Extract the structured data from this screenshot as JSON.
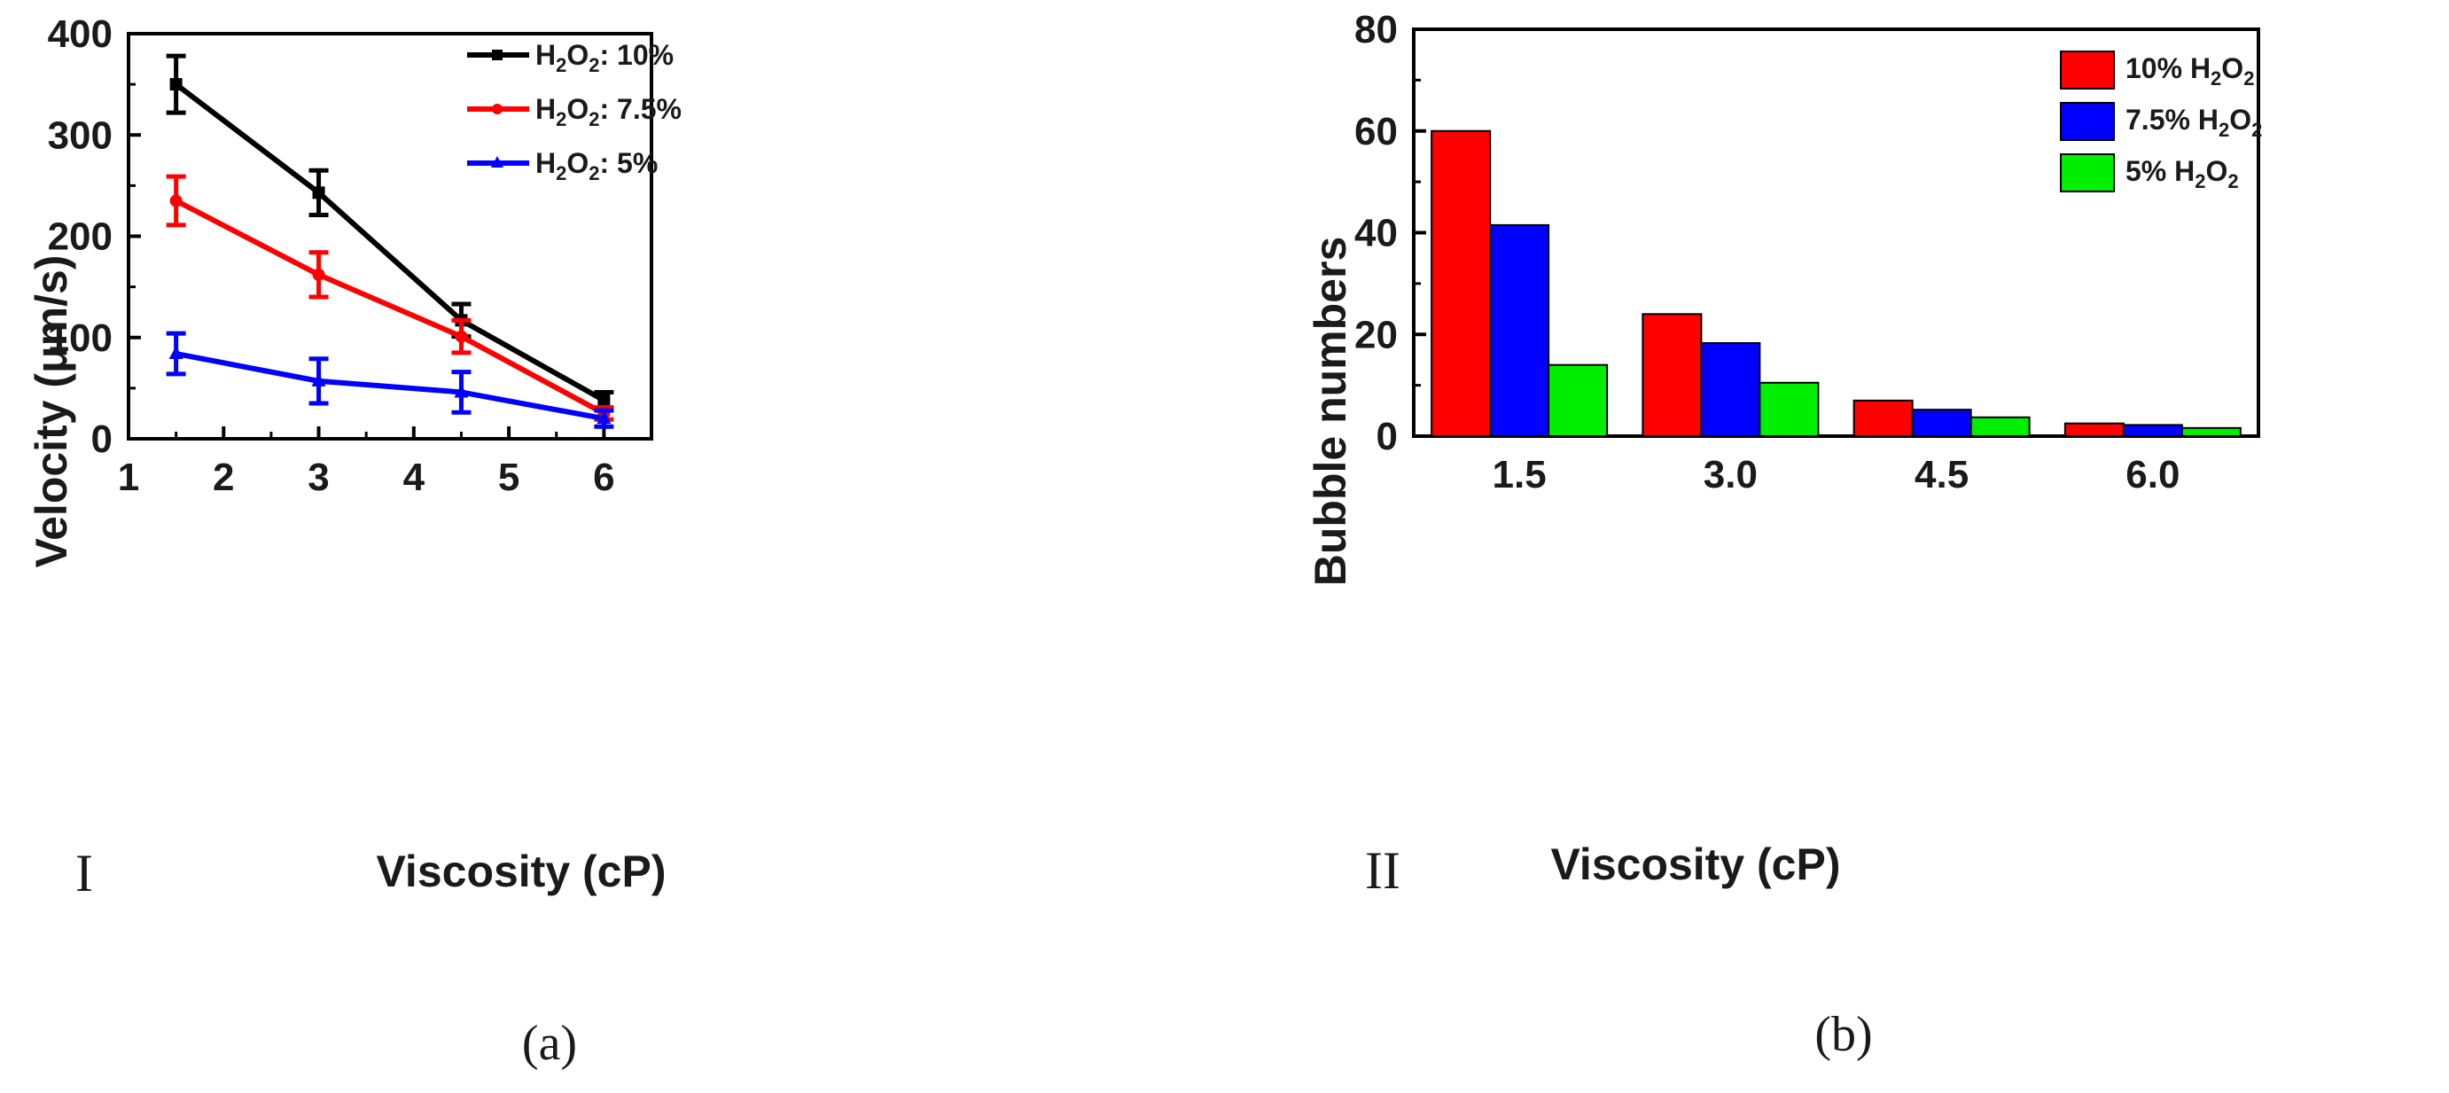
{
  "chart_data": [
    {
      "type": "line",
      "panel_numeral": "I",
      "caption": "(a)",
      "xlabel": "Viscosity (cP)",
      "ylabel": "Velocity (μm/s)",
      "xlim": [
        1,
        6.5
      ],
      "ylim": [
        0,
        400
      ],
      "x_ticks": [
        1,
        2,
        3,
        4,
        5,
        6
      ],
      "y_ticks": [
        0,
        100,
        200,
        300,
        400
      ],
      "legend_position": "top-right",
      "series": [
        {
          "name": "H2O2: 10%",
          "legend_prefix": "H",
          "legend_sub1": "2",
          "legend_mid": "O",
          "legend_sub2": "2",
          "legend_suffix": ": 10%",
          "color": "#000000",
          "marker": "square",
          "x": [
            1.5,
            3,
            4.5,
            6
          ],
          "y": [
            350,
            243,
            117,
            38
          ],
          "err": [
            28,
            22,
            16,
            8
          ]
        },
        {
          "name": "H2O2: 7.5%",
          "legend_prefix": "H",
          "legend_sub1": "2",
          "legend_mid": "O",
          "legend_sub2": "2",
          "legend_suffix": ": 7.5%",
          "color": "#ff0000",
          "marker": "circle",
          "x": [
            1.5,
            3,
            4.5,
            6
          ],
          "y": [
            235,
            162,
            101,
            25
          ],
          "err": [
            24,
            22,
            16,
            6
          ]
        },
        {
          "name": "H2O2: 5%",
          "legend_prefix": "H",
          "legend_sub1": "2",
          "legend_mid": "O",
          "legend_sub2": "2",
          "legend_suffix": ": 5%",
          "color": "#0000ff",
          "marker": "triangle",
          "x": [
            1.5,
            3,
            4.5,
            6
          ],
          "y": [
            84,
            57,
            46,
            20
          ],
          "err": [
            20,
            22,
            20,
            8
          ]
        }
      ]
    },
    {
      "type": "bar",
      "panel_numeral": "II",
      "caption": "(b)",
      "xlabel": "Viscosity (cP)",
      "ylabel": "Bubble numbers",
      "ylim": [
        0,
        80
      ],
      "y_ticks": [
        0,
        20,
        40,
        60,
        80
      ],
      "categories": [
        "1.5",
        "3.0",
        "4.5",
        "6.0"
      ],
      "legend_position": "top-right",
      "series": [
        {
          "name": "10% H2O2",
          "legend_prefix": "10% H",
          "legend_sub1": "2",
          "legend_mid": "O",
          "legend_sub2": "2",
          "color": "#ff0000",
          "values": [
            60,
            24,
            7,
            2.5
          ]
        },
        {
          "name": "7.5% H2O2",
          "legend_prefix": "7.5% H",
          "legend_sub1": "2",
          "legend_mid": "O",
          "legend_sub2": "2",
          "color": "#0000ff",
          "values": [
            41.5,
            18.3,
            5.2,
            2.2
          ]
        },
        {
          "name": "5% H2O2",
          "legend_prefix": "5% H",
          "legend_sub1": "2",
          "legend_mid": "O",
          "legend_sub2": "2",
          "color": "#00ee00",
          "values": [
            14,
            10.5,
            3.7,
            1.6
          ]
        }
      ]
    }
  ]
}
